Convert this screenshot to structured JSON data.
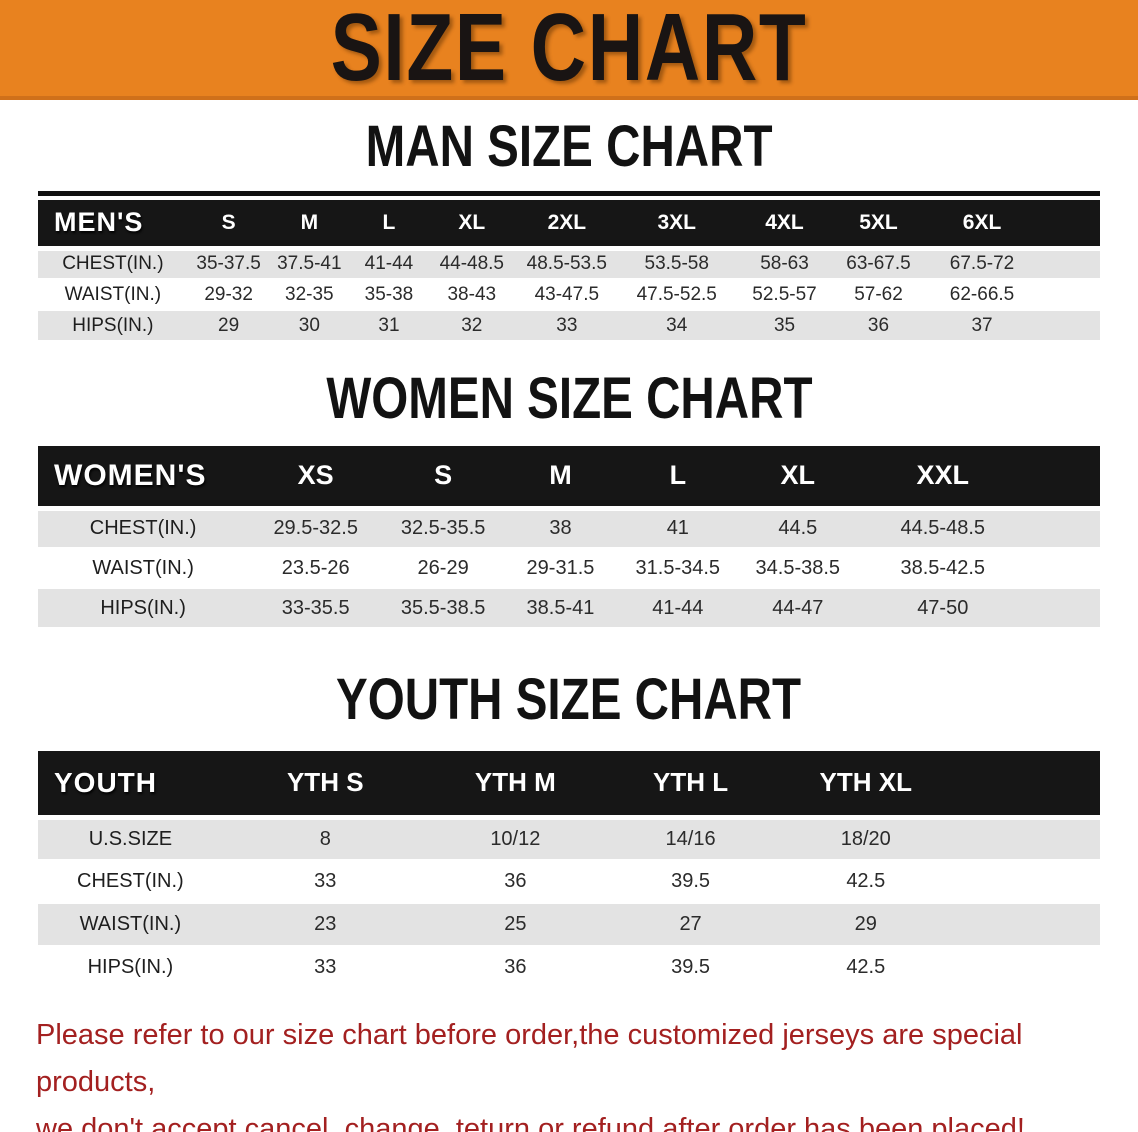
{
  "banner": {
    "title": "SIZE CHART",
    "background": "#E8821F",
    "text_color": "#191413"
  },
  "sections": [
    {
      "id": "men",
      "heading": "MAN SIZE CHART"
    },
    {
      "id": "women",
      "heading": "WOMEN SIZE CHART"
    },
    {
      "id": "youth",
      "heading": "YOUTH SIZE CHART"
    }
  ],
  "tables": {
    "men": {
      "label": "MEN'S",
      "columns": [
        "S",
        "M",
        "L",
        "XL",
        "2XL",
        "3XL",
        "4XL",
        "5XL",
        "6XL"
      ],
      "rows": [
        {
          "label": "CHEST(IN.)",
          "values": [
            "35-37.5",
            "37.5-41",
            "41-44",
            "44-48.5",
            "48.5-53.5",
            "53.5-58",
            "58-63",
            "63-67.5",
            "67.5-72"
          ]
        },
        {
          "label": "WAIST(IN.)",
          "values": [
            "29-32",
            "32-35",
            "35-38",
            "38-43",
            "43-47.5",
            "47.5-52.5",
            "52.5-57",
            "57-62",
            "62-66.5"
          ]
        },
        {
          "label": "HIPS(IN.)",
          "values": [
            "29",
            "30",
            "31",
            "32",
            "33",
            "34",
            "35",
            "36",
            "37"
          ]
        }
      ]
    },
    "women": {
      "label": "WOMEN'S",
      "columns": [
        "XS",
        "S",
        "M",
        "L",
        "XL",
        "XXL"
      ],
      "rows": [
        {
          "label": "CHEST(IN.)",
          "values": [
            "29.5-32.5",
            "32.5-35.5",
            "38",
            "41",
            "44.5",
            "44.5-48.5"
          ]
        },
        {
          "label": "WAIST(IN.)",
          "values": [
            "23.5-26",
            "26-29",
            "29-31.5",
            "31.5-34.5",
            "34.5-38.5",
            "38.5-42.5"
          ]
        },
        {
          "label": "HIPS(IN.)",
          "values": [
            "33-35.5",
            "35.5-38.5",
            "38.5-41",
            "41-44",
            "44-47",
            "47-50"
          ]
        }
      ]
    },
    "youth": {
      "label": "YOUTH",
      "columns": [
        "YTH S",
        "YTH M",
        "YTH L",
        "YTH XL"
      ],
      "rows": [
        {
          "label": "U.S.SIZE",
          "values": [
            "8",
            "10/12",
            "14/16",
            "18/20"
          ]
        },
        {
          "label": "CHEST(IN.)",
          "values": [
            "33",
            "36",
            "39.5",
            "42.5"
          ]
        },
        {
          "label": "WAIST(IN.)",
          "values": [
            "23",
            "25",
            "27",
            "29"
          ]
        },
        {
          "label": "HIPS(IN.)",
          "values": [
            "33",
            "36",
            "39.5",
            "42.5"
          ]
        }
      ]
    }
  },
  "disclaimer": {
    "color": "#A32020",
    "line1": "Please refer to our size chart before order,the customized jerseys are special products,",
    "line2": "we don't accept cancel, change, teturn or refund after order has been placed!"
  }
}
